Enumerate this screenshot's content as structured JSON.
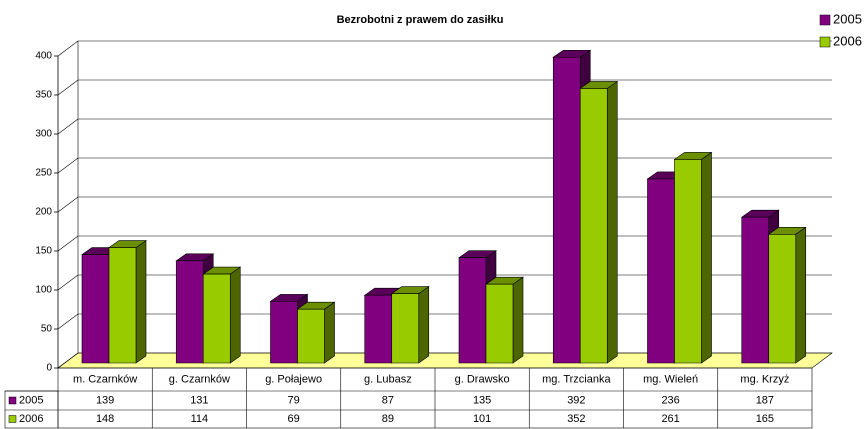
{
  "chart_data": {
    "type": "bar3d",
    "title": "Bezrobotni z prawem do zasiłku",
    "categories": [
      "m. Czarnków",
      "g. Czarnków",
      "g. Połajewo",
      "g. Lubasz",
      "g. Drawsko",
      "mg. Trzcianka",
      "mg. Wieleń",
      "mg. Krzyż"
    ],
    "series": [
      {
        "name": "2005",
        "color": "#800080",
        "values": [
          139,
          131,
          79,
          87,
          135,
          392,
          236,
          187
        ]
      },
      {
        "name": "2006",
        "color": "#99cc00",
        "values": [
          148,
          114,
          69,
          89,
          101,
          352,
          261,
          165
        ]
      }
    ],
    "ylim": [
      0,
      400
    ],
    "yticks": [
      0,
      50,
      100,
      150,
      200,
      250,
      300,
      350,
      400
    ],
    "grid": true,
    "legend": "top-right",
    "data_table": true
  }
}
